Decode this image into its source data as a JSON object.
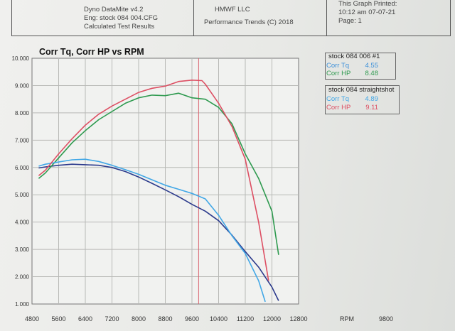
{
  "header": {
    "software": "Dyno DataMite v4.2",
    "engine_cfg": "Eng: stock 084 004.CFG",
    "results_label": "Calculated Test Results",
    "shop": "HMWF LLC",
    "trends": "Performance Trends (C) 2018",
    "printed_label": "This Graph Printed:",
    "printed_time": "10:12 am 07-07-21",
    "page": "Page: 1"
  },
  "legend": [
    {
      "title": "stock 084 006  #1",
      "entries": [
        {
          "label": "Corr Tq",
          "value": "4.55",
          "color": "#3b8fd9"
        },
        {
          "label": "Corr HP",
          "value": "8.48",
          "color": "#2e9a4f"
        }
      ]
    },
    {
      "title": "stock 084 straightshot",
      "entries": [
        {
          "label": "Corr Tq",
          "value": "4.89",
          "color": "#41a7e6"
        },
        {
          "label": "Corr HP",
          "value": "9.11",
          "color": "#dd4f63"
        }
      ]
    }
  ],
  "chart_data": {
    "type": "line",
    "title": "Corr Tq, Corr HP vs RPM",
    "xlabel": "RPM",
    "xlim": [
      4800,
      12800
    ],
    "ylim": [
      1.0,
      10.0
    ],
    "x_ticks": [
      "4800",
      "5600",
      "6400",
      "7200",
      "8000",
      "8800",
      "9600",
      "10400",
      "11200",
      "12000",
      "12800"
    ],
    "y_ticks": [
      "10.000",
      "9.000",
      "8.000",
      "7.000",
      "6.000",
      "5.000",
      "4.000",
      "3.000",
      "2.000",
      "1.000"
    ],
    "marker_label": "9800",
    "marker_rpm": 9800,
    "grid": true,
    "series": [
      {
        "name": "stock 084 006 #1 Corr Tq",
        "color": "#2b3a8c",
        "x": [
          5000,
          5200,
          5600,
          6000,
          6400,
          6800,
          7200,
          7600,
          8000,
          8400,
          8800,
          9200,
          9600,
          10000,
          10400,
          10800,
          11200,
          11600,
          12000,
          12200
        ],
        "y": [
          5.98,
          6.02,
          6.08,
          6.12,
          6.1,
          6.08,
          6.0,
          5.85,
          5.65,
          5.42,
          5.18,
          4.93,
          4.65,
          4.4,
          4.05,
          3.52,
          2.92,
          2.35,
          1.62,
          1.12
        ]
      },
      {
        "name": "stock 084 006 #1 Corr HP",
        "color": "#2e9a4f",
        "x": [
          5000,
          5200,
          5600,
          6000,
          6400,
          6800,
          7200,
          7600,
          8000,
          8400,
          8800,
          9200,
          9600,
          10000,
          10400,
          10800,
          11200,
          11600,
          12000,
          12200
        ],
        "y": [
          5.6,
          5.8,
          6.35,
          6.9,
          7.35,
          7.75,
          8.05,
          8.35,
          8.55,
          8.65,
          8.63,
          8.72,
          8.55,
          8.5,
          8.2,
          7.6,
          6.5,
          5.6,
          4.4,
          2.8
        ]
      },
      {
        "name": "stock 084 straightshot Corr Tq",
        "color": "#41a7e6",
        "x": [
          5000,
          5200,
          5600,
          6000,
          6400,
          6800,
          7200,
          7600,
          8000,
          8400,
          8800,
          9200,
          9600,
          10000,
          10400,
          10800,
          11200,
          11600,
          11800
        ],
        "y": [
          6.05,
          6.12,
          6.2,
          6.28,
          6.3,
          6.22,
          6.08,
          5.92,
          5.75,
          5.55,
          5.35,
          5.2,
          5.05,
          4.85,
          4.25,
          3.5,
          2.85,
          1.85,
          1.08
        ]
      },
      {
        "name": "stock 084 straightshot Corr HP",
        "color": "#dd4f63",
        "x": [
          5000,
          5200,
          5600,
          6000,
          6400,
          6800,
          7200,
          7600,
          8000,
          8400,
          8800,
          9200,
          9600,
          9900,
          10000,
          10400,
          10800,
          11200,
          11600,
          11900
        ],
        "y": [
          5.7,
          5.9,
          6.5,
          7.05,
          7.55,
          7.95,
          8.25,
          8.5,
          8.75,
          8.9,
          8.98,
          9.15,
          9.2,
          9.18,
          9.05,
          8.35,
          7.5,
          6.3,
          4.0,
          1.85
        ]
      }
    ]
  }
}
